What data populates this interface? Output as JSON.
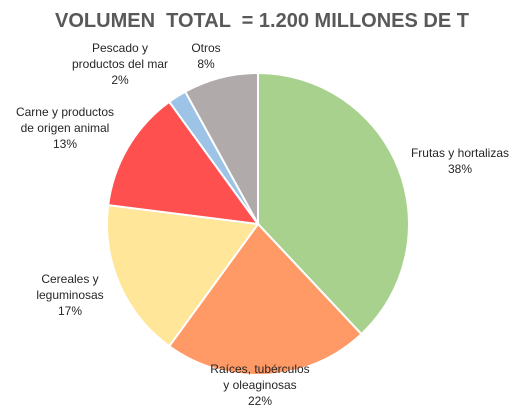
{
  "chart_data": {
    "type": "pie",
    "title": "VOLUMEN  TOTAL  = 1.200 MILLONES DE T",
    "slices": [
      {
        "label_lines": [
          "Frutas y hortalizas"
        ],
        "value_label": "38%",
        "value": 38,
        "color": "#a9d18e"
      },
      {
        "label_lines": [
          "Raíces, tubérculos",
          "y oleaginosas"
        ],
        "value_label": "22%",
        "value": 22,
        "color": "#ff9966"
      },
      {
        "label_lines": [
          "Cereales y",
          "leguminosas"
        ],
        "value_label": "17%",
        "value": 17,
        "color": "#ffe699"
      },
      {
        "label_lines": [
          "Carne y productos",
          "de origen animal"
        ],
        "value_label": "13%",
        "value": 13,
        "color": "#ff5050"
      },
      {
        "label_lines": [
          "Pescado y",
          "productos del mar"
        ],
        "value_label": "2%",
        "value": 2,
        "color": "#9dc3e6"
      },
      {
        "label_lines": [
          "Otros"
        ],
        "value_label": "8%",
        "value": 8,
        "color": "#b0aaaa"
      }
    ]
  }
}
